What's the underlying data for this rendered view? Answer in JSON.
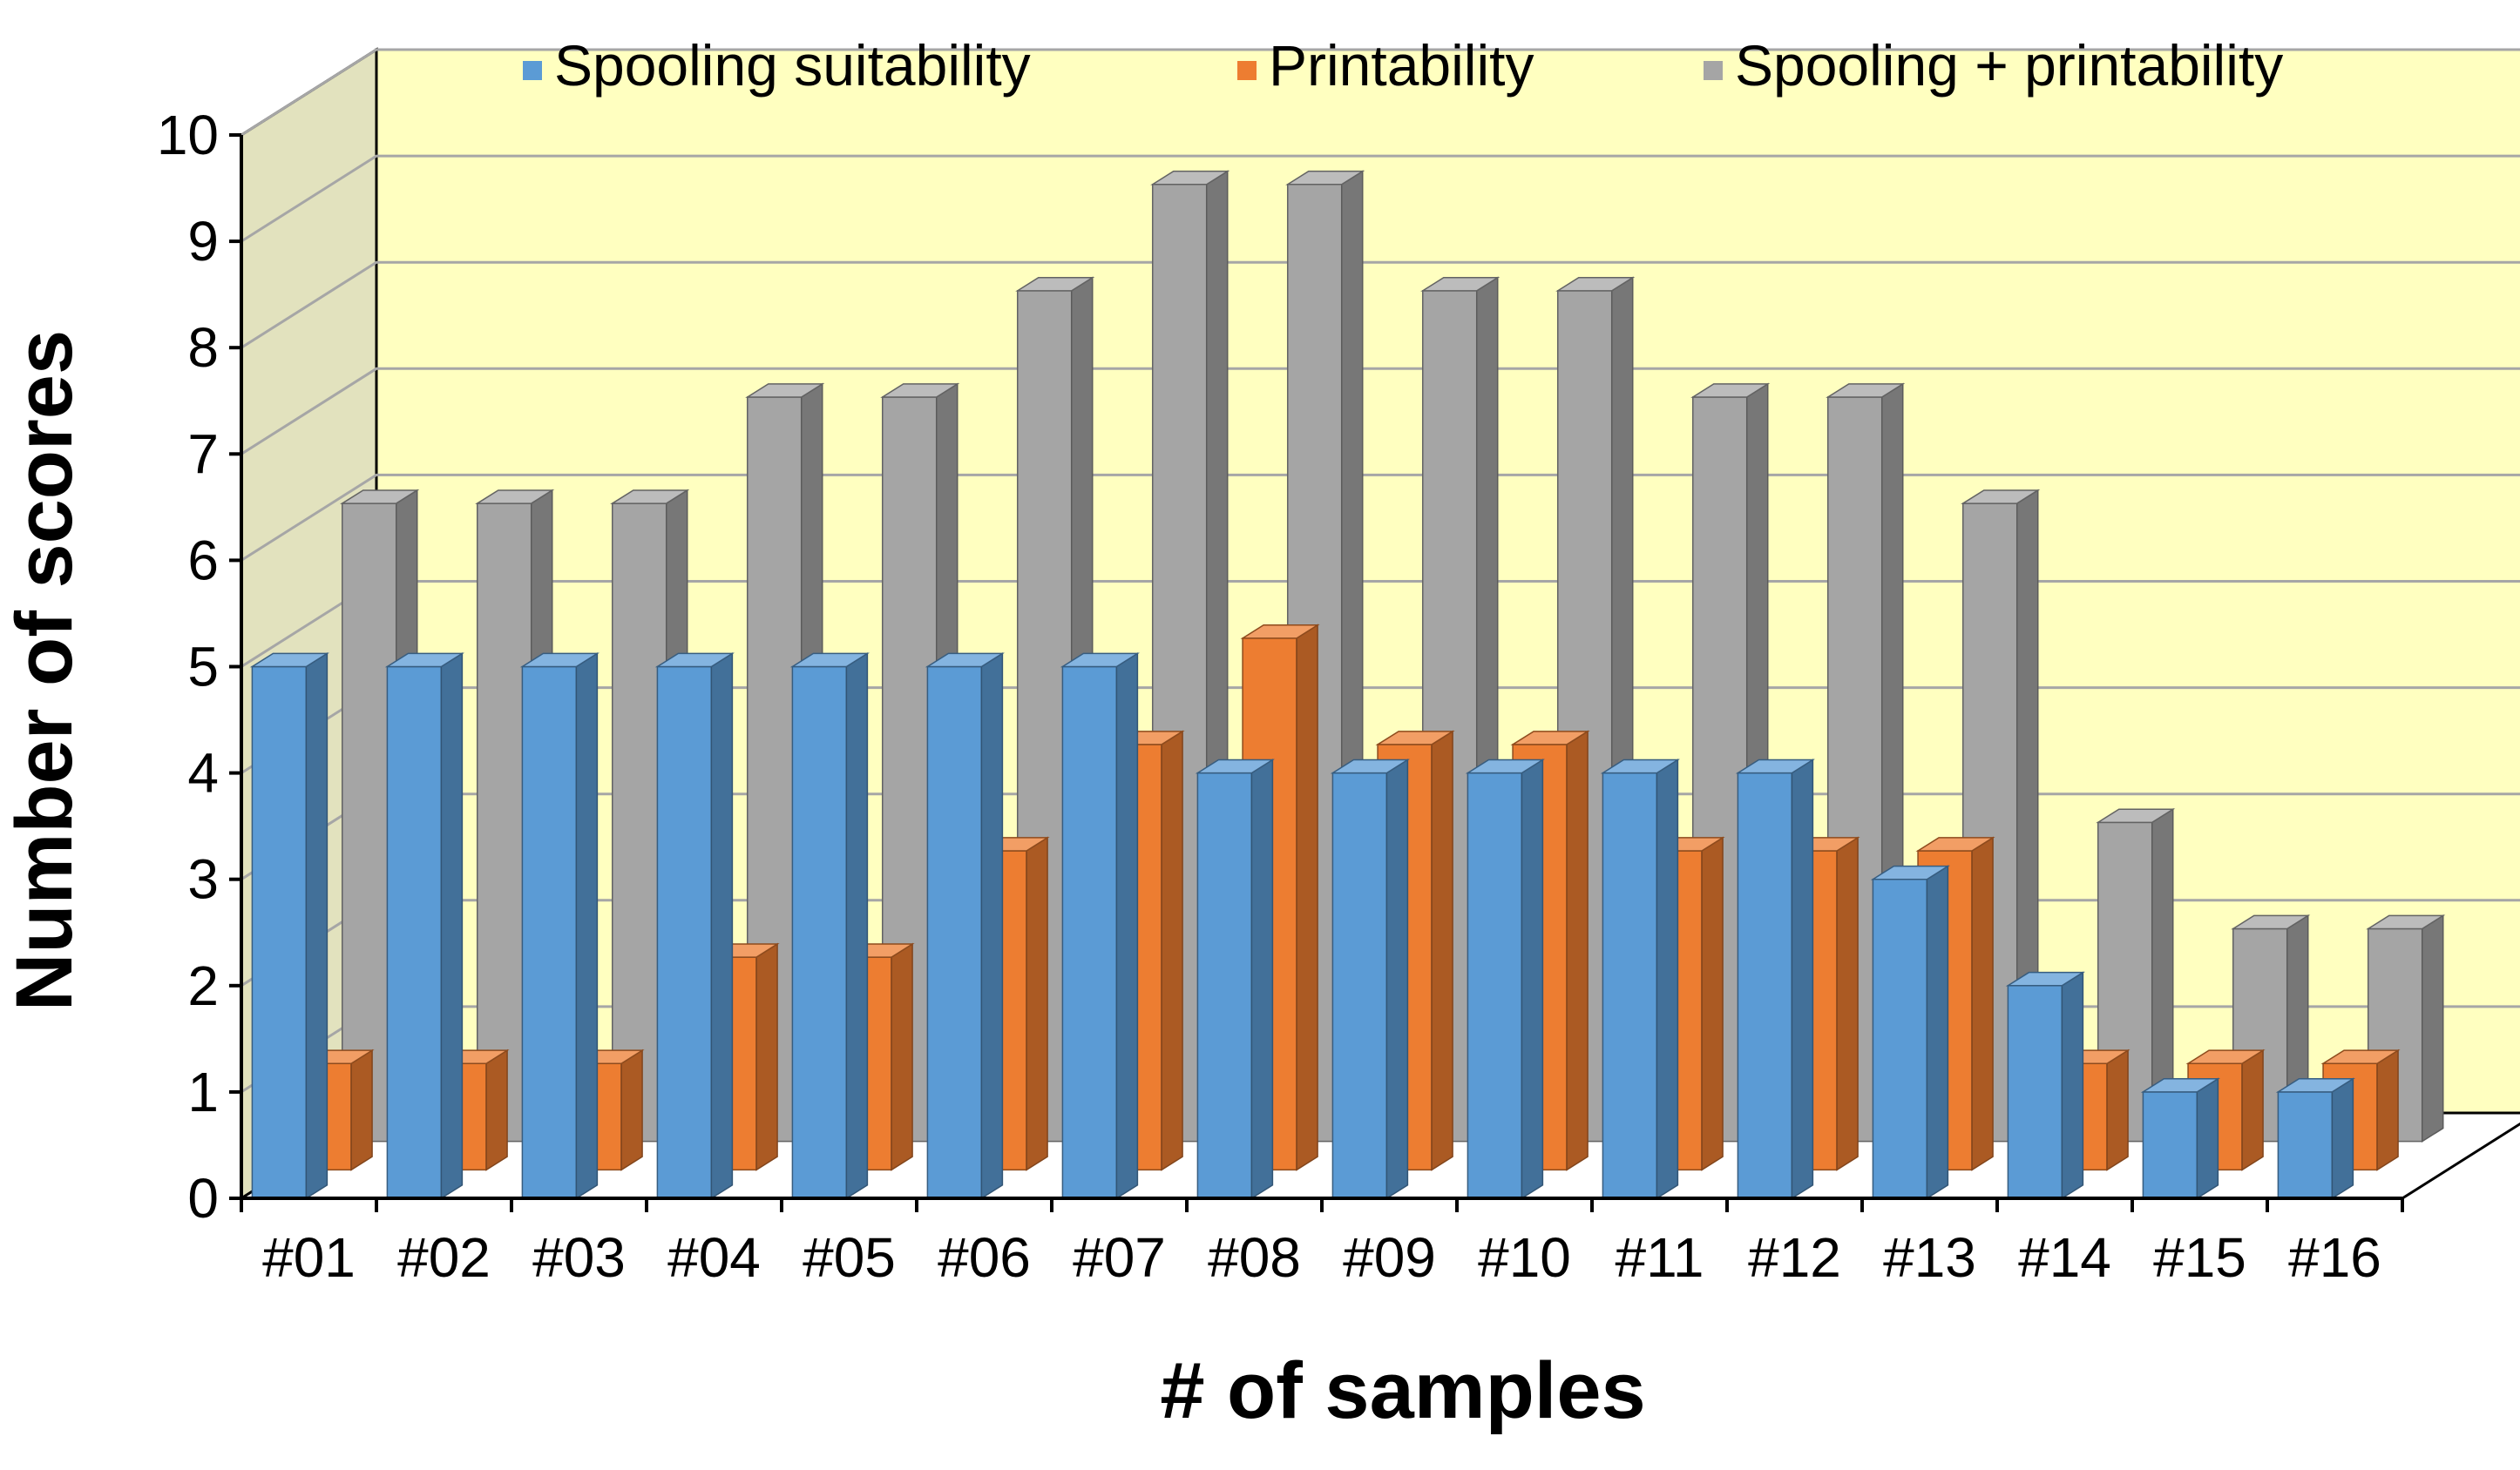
{
  "chart_data": {
    "type": "bar",
    "variant": "3d-column",
    "title": "",
    "xlabel": "# of samples",
    "ylabel": "Number of scores",
    "ylim": [
      0,
      10
    ],
    "yticks": [
      0,
      1,
      2,
      3,
      4,
      5,
      6,
      7,
      8,
      9,
      10
    ],
    "grid": true,
    "legend_position": "top",
    "categories": [
      "#01",
      "#02",
      "#03",
      "#04",
      "#05",
      "#06",
      "#07",
      "#08",
      "#09",
      "#10",
      "#11",
      "#12",
      "#13",
      "#14",
      "#15",
      "#16"
    ],
    "series": [
      {
        "name": "Spooling suitability",
        "color": "#5B9BD5",
        "values": [
          5,
          5,
          5,
          5,
          5,
          5,
          5,
          4,
          4,
          4,
          4,
          4,
          3,
          2,
          1,
          1
        ]
      },
      {
        "name": "Printability",
        "color": "#ED7D31",
        "values": [
          1,
          1,
          1,
          2,
          2,
          3,
          4,
          5,
          4,
          4,
          3,
          3,
          3,
          1,
          1,
          1
        ]
      },
      {
        "name": "Spooling + printability",
        "color": "#A5A5A5",
        "values": [
          6,
          6,
          6,
          7,
          7,
          8,
          9,
          9,
          8,
          8,
          7,
          7,
          6,
          3,
          2,
          2
        ]
      }
    ],
    "colors": {
      "wall_back": "#FFFFC0",
      "wall_side": "#E2E2BE",
      "gridline": "#A6A6A6",
      "frame": "#000000"
    }
  }
}
